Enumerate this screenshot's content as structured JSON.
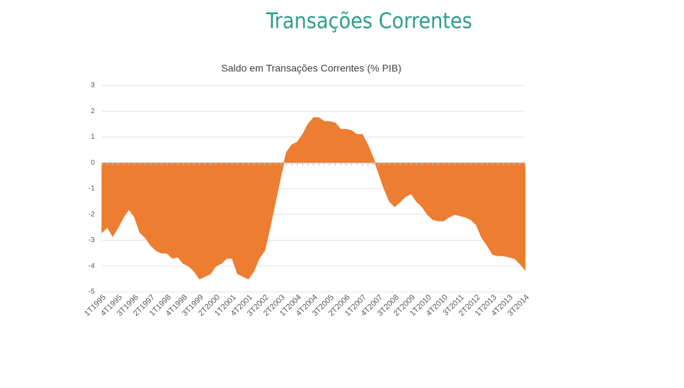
{
  "slide_title": "Transações Correntes",
  "chart_data": {
    "type": "area",
    "title": "Saldo em Transações Correntes (% PIB)",
    "categories": [
      "1T1995",
      null,
      null,
      "4T1995",
      null,
      null,
      "3T1996",
      null,
      null,
      "2T1997",
      null,
      null,
      "1T1998",
      null,
      null,
      "4T1998",
      null,
      null,
      "3T1999",
      null,
      null,
      "2T2000",
      null,
      null,
      "1T2001",
      null,
      null,
      "4T2001",
      null,
      null,
      "3T2002",
      null,
      null,
      "2T2003",
      null,
      null,
      "1T2004",
      null,
      null,
      "4T2004",
      null,
      null,
      "3T2005",
      null,
      null,
      "2T2006",
      null,
      null,
      "1T2007",
      null,
      null,
      "4T2007",
      null,
      null,
      "3T2008",
      null,
      null,
      "2T2009",
      null,
      null,
      "1T2010",
      null,
      null,
      "4T2010",
      null,
      null,
      "3T2011",
      null,
      null,
      "2T2012",
      null,
      null,
      "1T2013",
      null,
      null,
      "4T2013",
      null,
      null,
      "3T2014"
    ],
    "values": [
      -2.7,
      -2.5,
      -2.85,
      -2.5,
      -2.1,
      -1.8,
      -2.1,
      -2.7,
      -2.9,
      -3.2,
      -3.4,
      -3.5,
      -3.5,
      -3.7,
      -3.65,
      -3.9,
      -4.0,
      -4.2,
      -4.5,
      -4.4,
      -4.3,
      -4.0,
      -3.9,
      -3.7,
      -3.7,
      -4.3,
      -4.4,
      -4.5,
      -4.2,
      -3.7,
      -3.4,
      -2.5,
      -1.5,
      -0.5,
      0.4,
      0.7,
      0.8,
      1.1,
      1.5,
      1.75,
      1.75,
      1.6,
      1.6,
      1.55,
      1.3,
      1.3,
      1.25,
      1.1,
      1.1,
      0.7,
      0.2,
      -0.4,
      -1.0,
      -1.5,
      -1.7,
      -1.5,
      -1.3,
      -1.2,
      -1.5,
      -1.7,
      -2.0,
      -2.2,
      -2.25,
      -2.25,
      -2.1,
      -2.0,
      -2.05,
      -2.1,
      -2.2,
      -2.4,
      -2.9,
      -3.2,
      -3.55,
      -3.6,
      -3.6,
      -3.65,
      -3.7,
      -3.9,
      -4.15
    ],
    "color": "#ed7d31",
    "ylim": [
      -5,
      3
    ],
    "yticks": [
      -5,
      -4,
      -3,
      -2,
      -1,
      0,
      1,
      2,
      3
    ],
    "grid": true
  }
}
